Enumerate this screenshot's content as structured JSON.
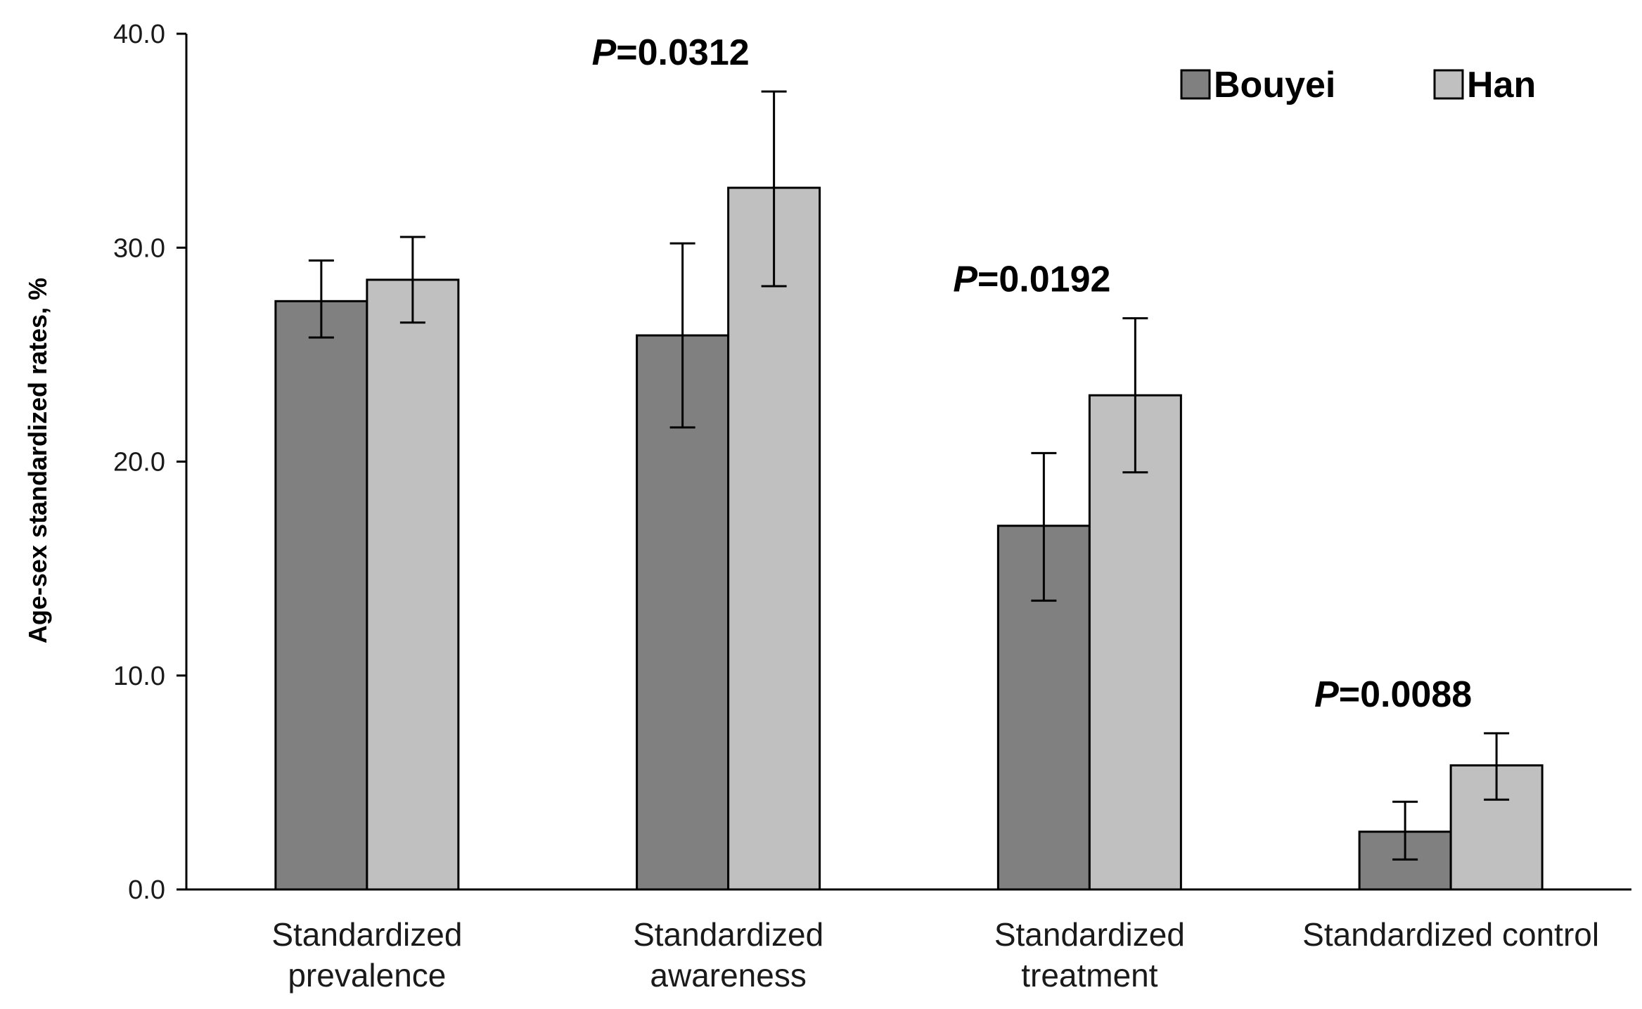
{
  "chart_data": {
    "type": "bar",
    "title": "",
    "xlabel": "",
    "ylabel": "Age-sex standardized rates, %",
    "ylim": [
      0,
      40
    ],
    "yticks": [
      0,
      10,
      20,
      30,
      40
    ],
    "ytick_labels": [
      "0.0",
      "10.0",
      "20.0",
      "30.0",
      "40.0"
    ],
    "legend_position": "top-right",
    "categories": [
      [
        "Standardized",
        "prevalence"
      ],
      [
        "Standardized",
        "awareness"
      ],
      [
        "Standardized",
        "treatment"
      ],
      [
        "Standardized control"
      ]
    ],
    "series": [
      {
        "name": "Bouyei",
        "color": "#808080",
        "values": [
          27.5,
          25.9,
          17.0,
          2.7
        ],
        "err_low": [
          25.8,
          21.6,
          13.5,
          1.4
        ],
        "err_high": [
          29.4,
          30.2,
          20.4,
          4.1
        ]
      },
      {
        "name": "Han",
        "color": "#c0c0c0",
        "values": [
          28.5,
          32.8,
          23.1,
          5.8
        ],
        "err_low": [
          26.5,
          28.2,
          19.5,
          4.2
        ],
        "err_high": [
          30.5,
          37.3,
          26.7,
          7.3
        ]
      }
    ],
    "annotations": [
      {
        "category": 0,
        "prefix": "",
        "text": ""
      },
      {
        "category": 1,
        "prefix": "P",
        "text": "=0.0312"
      },
      {
        "category": 2,
        "prefix": "P",
        "text": "=0.0192"
      },
      {
        "category": 3,
        "prefix": "P",
        "text": "=0.0088"
      }
    ]
  }
}
